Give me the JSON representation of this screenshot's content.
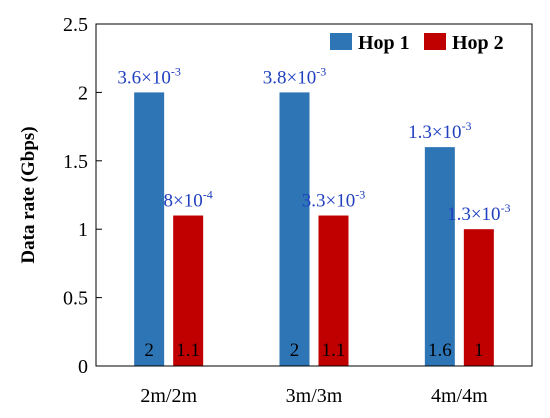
{
  "chart_data": {
    "type": "bar",
    "categories": [
      "2m/2m",
      "3m/3m",
      "4m/4m"
    ],
    "series": [
      {
        "name": "Hop 1",
        "color": "#2e75b6",
        "values": [
          2,
          2,
          1.6
        ],
        "value_labels": [
          "2",
          "2",
          "1.6"
        ],
        "annotations": [
          {
            "base": "3.6×10",
            "exp": "-3"
          },
          {
            "base": "3.8×10",
            "exp": "-3"
          },
          {
            "base": "1.3×10",
            "exp": "-3"
          }
        ]
      },
      {
        "name": "Hop 2",
        "color": "#c00000",
        "values": [
          1.1,
          1.1,
          1
        ],
        "value_labels": [
          "1.1",
          "1.1",
          "1"
        ],
        "annotations": [
          {
            "base": "8×10",
            "exp": "-4"
          },
          {
            "base": "3.3×10",
            "exp": "-3"
          },
          {
            "base": "1.3×10",
            "exp": "-3"
          }
        ]
      }
    ],
    "ylabel": "Data rate (Gbps)",
    "xlabel": "",
    "ylim": [
      0,
      2.5
    ],
    "yticks": [
      0,
      0.5,
      1,
      1.5,
      2,
      2.5
    ],
    "ytick_labels": [
      "0",
      "0.5",
      "1",
      "1.5",
      "2",
      "2.5"
    ],
    "legend_position": "top-right",
    "grid": false
  }
}
